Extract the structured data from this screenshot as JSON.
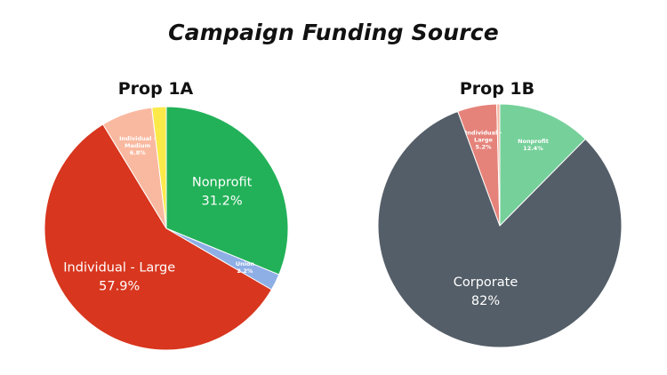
{
  "title": "Campaign Funding Source",
  "chart_data": [
    {
      "type": "pie",
      "title": "Prop 1A",
      "slices": [
        {
          "label": "Nonprofit",
          "value": 31.2,
          "display": "31.2%",
          "color": "#22b158",
          "label_color": "#ffffff",
          "label_size": "large"
        },
        {
          "label": "Union",
          "value": 2.2,
          "display": "2.2%",
          "color": "#8eaee6",
          "label_color": "#ffffff",
          "label_size": "tiny"
        },
        {
          "label": "Individual - Large",
          "value": 57.9,
          "display": "57.9%",
          "color": "#d8361e",
          "label_color": "#ffffff",
          "label_size": "large"
        },
        {
          "label": "Individual - Medium",
          "value": 6.8,
          "display": "6.8%",
          "color": "#f9b9a0",
          "label_color": "#ffffff",
          "label_size": "tiny"
        },
        {
          "label": "",
          "value": 1.9,
          "display": "",
          "color": "#fbe94a",
          "label_color": "#ffffff",
          "label_size": "none"
        }
      ]
    },
    {
      "type": "pie",
      "title": "Prop 1B",
      "slices": [
        {
          "label": "Nonprofit",
          "value": 12.4,
          "display": "12.4%",
          "color": "#76d09a",
          "label_color": "#ffffff",
          "label_size": "tiny"
        },
        {
          "label": "Corporate",
          "value": 82,
          "display": "82%",
          "color": "#545e68",
          "label_color": "#ffffff",
          "label_size": "large"
        },
        {
          "label": "Individual - Large",
          "value": 5.2,
          "display": "5.2%",
          "color": "#e5837a",
          "label_color": "#ffffff",
          "label_size": "tiny"
        },
        {
          "label": "",
          "value": 0.4,
          "display": "",
          "color": "#f5b6a3",
          "label_color": "#ffffff",
          "label_size": "none"
        }
      ]
    }
  ]
}
